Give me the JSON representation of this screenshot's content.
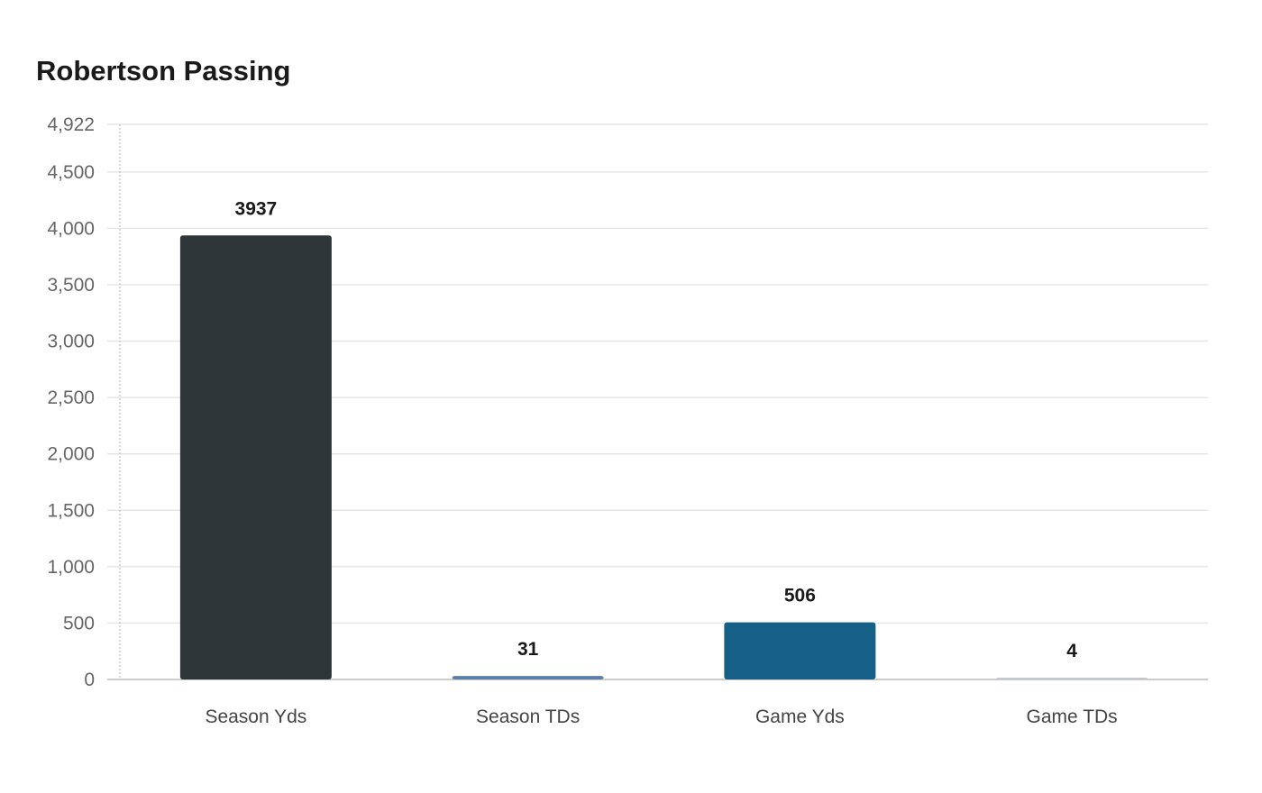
{
  "chart_data": {
    "type": "bar",
    "title": "Robertson Passing",
    "xlabel": "",
    "ylabel": "",
    "categories": [
      "Season Yds",
      "Season TDs",
      "Game Yds",
      "Game TDs"
    ],
    "values": [
      3937,
      31,
      506,
      4
    ],
    "value_labels": [
      "3937",
      "31",
      "506",
      "4"
    ],
    "colors": [
      "#2e3538",
      "#5b7fa8",
      "#166088",
      "#c4c8cc"
    ],
    "ylim": [
      0,
      4922
    ],
    "yticks": [
      0,
      500,
      1000,
      1500,
      2000,
      2500,
      3000,
      3500,
      4000,
      4500,
      4922
    ],
    "ytick_labels": [
      "0",
      "500",
      "1,000",
      "1,500",
      "2,000",
      "2,500",
      "3,000",
      "3,500",
      "4,000",
      "4,500",
      "4,922"
    ],
    "grid": true,
    "legend": "none"
  }
}
